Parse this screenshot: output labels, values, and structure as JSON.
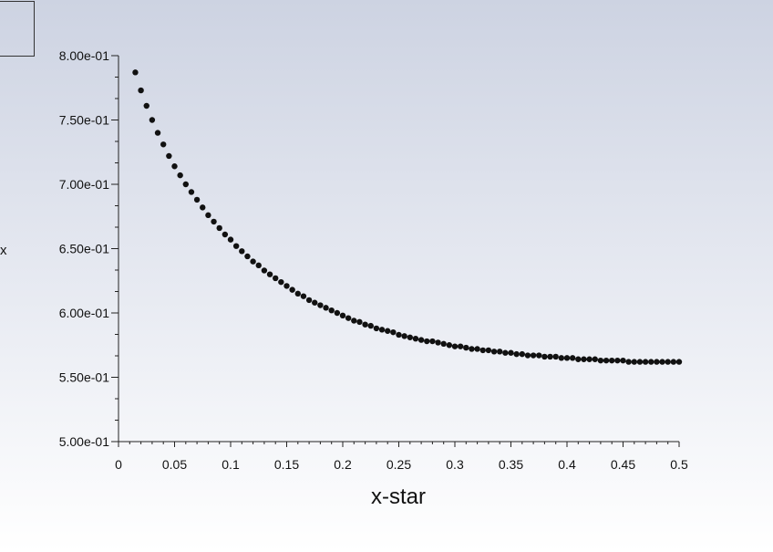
{
  "chart_data": {
    "type": "scatter",
    "xlabel": "x-star",
    "ylabel": "x",
    "xlim": [
      0,
      0.5
    ],
    "ylim": [
      0.5,
      0.8
    ],
    "x_ticks": [
      "0",
      "0.05",
      "0.1",
      "0.15",
      "0.2",
      "0.25",
      "0.3",
      "0.35",
      "0.4",
      "0.45",
      "0.5"
    ],
    "y_ticks": [
      "5.00e-01",
      "5.50e-01",
      "6.00e-01",
      "6.50e-01",
      "7.00e-01",
      "7.50e-01",
      "8.00e-01"
    ],
    "grid": false,
    "marker_color": "#111111",
    "series": [
      {
        "x": [
          0.015,
          0.02,
          0.025,
          0.03,
          0.035,
          0.04,
          0.045,
          0.05,
          0.055,
          0.06,
          0.065,
          0.07,
          0.075,
          0.08,
          0.085,
          0.09,
          0.095,
          0.1,
          0.105,
          0.11,
          0.115,
          0.12,
          0.125,
          0.13,
          0.135,
          0.14,
          0.145,
          0.15,
          0.155,
          0.16,
          0.165,
          0.17,
          0.175,
          0.18,
          0.185,
          0.19,
          0.195,
          0.2,
          0.205,
          0.21,
          0.215,
          0.22,
          0.225,
          0.23,
          0.235,
          0.24,
          0.245,
          0.25,
          0.255,
          0.26,
          0.265,
          0.27,
          0.275,
          0.28,
          0.285,
          0.29,
          0.295,
          0.3,
          0.305,
          0.31,
          0.315,
          0.32,
          0.325,
          0.33,
          0.335,
          0.34,
          0.345,
          0.35,
          0.355,
          0.36,
          0.365,
          0.37,
          0.375,
          0.38,
          0.385,
          0.39,
          0.395,
          0.4,
          0.405,
          0.41,
          0.415,
          0.42,
          0.425,
          0.43,
          0.435,
          0.44,
          0.445,
          0.45,
          0.455,
          0.46,
          0.465,
          0.47,
          0.475,
          0.48,
          0.485,
          0.49,
          0.495,
          0.5
        ],
        "y": [
          0.787,
          0.773,
          0.761,
          0.75,
          0.74,
          0.731,
          0.722,
          0.714,
          0.707,
          0.7,
          0.694,
          0.688,
          0.682,
          0.676,
          0.671,
          0.666,
          0.661,
          0.657,
          0.652,
          0.648,
          0.644,
          0.64,
          0.637,
          0.633,
          0.63,
          0.627,
          0.624,
          0.621,
          0.618,
          0.615,
          0.613,
          0.61,
          0.608,
          0.606,
          0.604,
          0.602,
          0.6,
          0.598,
          0.596,
          0.594,
          0.593,
          0.591,
          0.59,
          0.588,
          0.587,
          0.586,
          0.585,
          0.583,
          0.582,
          0.581,
          0.58,
          0.579,
          0.578,
          0.578,
          0.577,
          0.576,
          0.575,
          0.574,
          0.574,
          0.573,
          0.572,
          0.572,
          0.571,
          0.571,
          0.57,
          0.57,
          0.569,
          0.569,
          0.568,
          0.568,
          0.567,
          0.567,
          0.567,
          0.566,
          0.566,
          0.566,
          0.565,
          0.565,
          0.565,
          0.564,
          0.564,
          0.564,
          0.564,
          0.563,
          0.563,
          0.563,
          0.563,
          0.563,
          0.562,
          0.562,
          0.562,
          0.562,
          0.562,
          0.562,
          0.562,
          0.562,
          0.562,
          0.562
        ]
      }
    ]
  }
}
